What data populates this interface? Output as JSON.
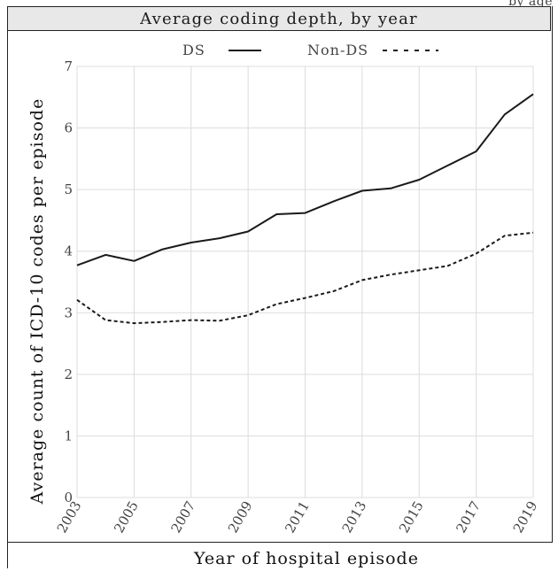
{
  "header_cutoff_text": "by age",
  "chart_data": {
    "type": "line",
    "title": "Average coding depth, by year",
    "xlabel": "Year of hospital episode",
    "ylabel": "Average count of ICD-10 codes per episode",
    "x": [
      2003,
      2004,
      2005,
      2006,
      2007,
      2008,
      2009,
      2010,
      2011,
      2012,
      2013,
      2014,
      2015,
      2016,
      2017,
      2018,
      2019
    ],
    "x_tick_labels": [
      "2003",
      "2005",
      "2007",
      "2009",
      "2011",
      "2013",
      "2015",
      "2017",
      "2019"
    ],
    "y_tick_labels": [
      "0",
      "1",
      "2",
      "3",
      "4",
      "5",
      "6",
      "7"
    ],
    "ylim": [
      0,
      7
    ],
    "xlim": [
      2003,
      2019
    ],
    "grid": true,
    "legend_position": "top",
    "series": [
      {
        "name": "DS",
        "line_style": "solid",
        "color": "#1a1a1a",
        "values": [
          3.77,
          3.94,
          3.84,
          4.03,
          4.14,
          4.21,
          4.32,
          4.6,
          4.62,
          4.81,
          4.98,
          5.02,
          5.16,
          5.39,
          5.62,
          6.22,
          6.55
        ]
      },
      {
        "name": "Non-DS",
        "line_style": "dashed",
        "color": "#1a1a1a",
        "values": [
          3.21,
          2.88,
          2.83,
          2.85,
          2.88,
          2.87,
          2.96,
          3.14,
          3.24,
          3.35,
          3.53,
          3.62,
          3.69,
          3.76,
          3.96,
          4.25,
          4.3
        ]
      }
    ]
  }
}
